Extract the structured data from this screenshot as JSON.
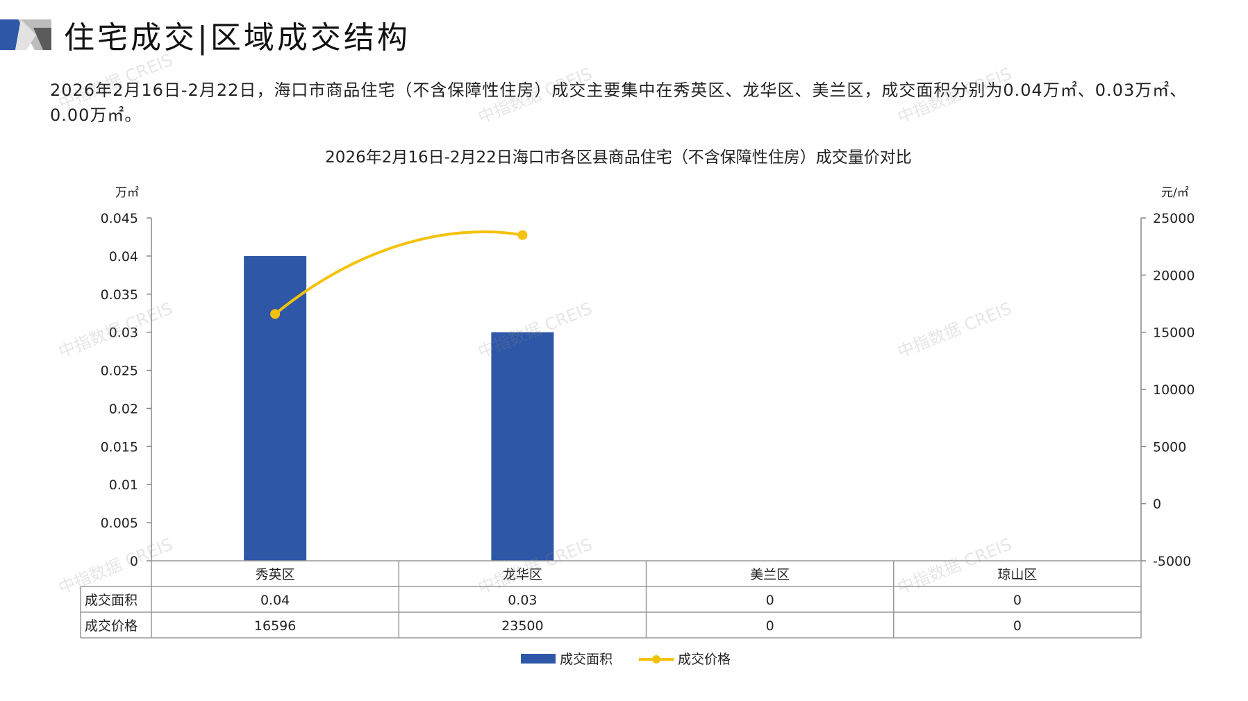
{
  "header": {
    "title": "住宅成交|区域成交结构"
  },
  "summary": "2026年2月16日-2月22日，海口市商品住宅（不含保障性住房）成交主要集中在秀英区、龙华区、美兰区，成交面积分别为0.04万㎡、0.03万㎡、0.00万㎡。",
  "watermark": "中指数据 CREIS",
  "colors": {
    "bar": "#2e57a7",
    "line": "#f4c20d",
    "logo_blue": "#2e57a7",
    "logo_gray": "#bcbcbc"
  },
  "chart_data": {
    "type": "bar",
    "title": "2026年2月16日-2月22日海口市各区县商品住宅（不含保障性住房）成交量价对比",
    "categories": [
      "秀英区",
      "龙华区",
      "美兰区",
      "琼山区"
    ],
    "series": [
      {
        "name": "成交面积",
        "type": "bar",
        "axis": "left",
        "values": [
          0.04,
          0.03,
          0,
          0
        ],
        "value_labels": [
          "0.04",
          "0.03",
          "0",
          "0"
        ],
        "color": "#2e57a7"
      },
      {
        "name": "成交价格",
        "type": "line",
        "axis": "right",
        "values": [
          16596,
          23500,
          null,
          null
        ],
        "value_labels": [
          "16596",
          "23500",
          "0",
          "0"
        ],
        "color": "#f4c20d"
      }
    ],
    "y_left": {
      "unit": "万㎡",
      "ylim": [
        0,
        0.045
      ],
      "ticks": [
        "0.045",
        "0.04",
        "0.035",
        "0.03",
        "0.025",
        "0.02",
        "0.015",
        "0.01",
        "0.005",
        "0"
      ]
    },
    "y_right": {
      "unit": "元/㎡",
      "ylim": [
        -5000,
        25000
      ],
      "ticks": [
        "25000",
        "20000",
        "15000",
        "10000",
        "5000",
        "0",
        "-5000"
      ]
    },
    "grid": false,
    "legend": "bottom-center",
    "data_table": true
  }
}
